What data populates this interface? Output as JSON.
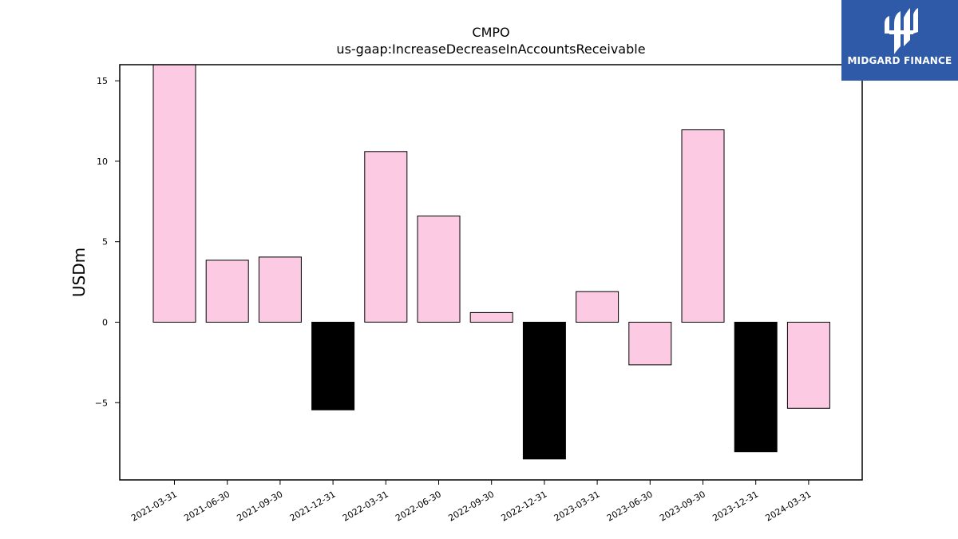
{
  "chart_data": {
    "type": "bar",
    "title": "CMPO",
    "subtitle": "us-gaap:IncreaseDecreaseInAccountsReceivable",
    "xlabel": "",
    "ylabel": "USDm",
    "categories": [
      "2021-03-31",
      "2021-06-30",
      "2021-09-30",
      "2021-12-31",
      "2022-03-31",
      "2022-06-30",
      "2022-09-30",
      "2022-12-31",
      "2023-03-31",
      "2023-06-30",
      "2023-09-30",
      "2023-12-31",
      "2024-03-31"
    ],
    "values": [
      16.0,
      3.85,
      4.05,
      -5.45,
      10.6,
      6.6,
      0.6,
      -8.5,
      1.9,
      -2.65,
      11.95,
      -8.05,
      -5.35
    ],
    "bar_colors": [
      "#fccbe3",
      "#fccbe3",
      "#fccbe3",
      "#000000",
      "#fccbe3",
      "#fccbe3",
      "#fccbe3",
      "#000000",
      "#fccbe3",
      "#fccbe3",
      "#fccbe3",
      "#000000",
      "#fccbe3"
    ],
    "ylim": [
      -9.8,
      16.0
    ],
    "yticks": [
      15,
      10,
      5,
      0,
      -5
    ],
    "ytick_labels": [
      "15",
      "10",
      "5",
      "0",
      "−5"
    ],
    "grid": false
  },
  "logo": {
    "text": "MIDGARD FINANCE",
    "background": "#2f5aa8"
  }
}
